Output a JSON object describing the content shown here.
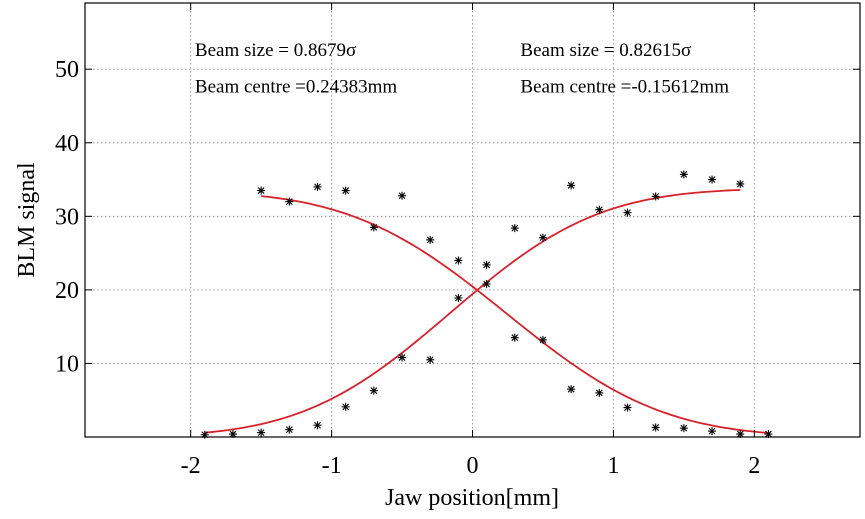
{
  "chart_data": {
    "type": "scatter",
    "xlabel": "Jaw position[mm]",
    "ylabel": "BLM signal",
    "xlim": [
      -2.75,
      2.75
    ],
    "ylim": [
      0,
      59
    ],
    "xticks": [
      -2,
      -1,
      0,
      1,
      2
    ],
    "yticks": [
      10,
      20,
      30,
      40,
      50
    ],
    "grid": true,
    "colors": {
      "fit": "#d8222a",
      "marker": "#000000",
      "grid": "#9a9a9a",
      "axes": "#000000"
    },
    "annotations": [
      {
        "id": "left-size",
        "text": "Beam size = 0.8679σ",
        "x": -1.97,
        "y": 51.8
      },
      {
        "id": "left-centre",
        "text": "Beam centre =0.24383mm",
        "x": -1.97,
        "y": 46.8
      },
      {
        "id": "right-size",
        "text": "Beam size = 0.82615σ",
        "x": 0.34,
        "y": 51.8
      },
      {
        "id": "right-centre",
        "text": "Beam centre =-0.15612mm",
        "x": 0.34,
        "y": 46.8
      }
    ],
    "series": [
      {
        "marker": "*",
        "x": [
          -1.5,
          -1.3,
          -1.1,
          -0.9,
          -0.7,
          -0.5,
          -0.3,
          -0.1,
          0.1,
          0.3,
          0.5,
          0.7,
          0.9,
          1.1,
          1.3,
          1.5,
          1.7,
          1.9,
          2.1
        ],
        "y": [
          33.5,
          32.0,
          34.0,
          33.5,
          28.5,
          32.8,
          26.8,
          24.0,
          20.8,
          13.5,
          13.2,
          6.5,
          6.0,
          4.0,
          1.3,
          1.2,
          0.8,
          0.4,
          0.4
        ],
        "fit": {
          "amplitude": 33.5,
          "centre": 0.24383,
          "sigma": 0.8679,
          "direction": "decreasing",
          "x_range": [
            -1.5,
            2.1
          ]
        }
      },
      {
        "marker": "*",
        "x": [
          -1.9,
          -1.7,
          -1.5,
          -1.3,
          -1.1,
          -0.9,
          -0.7,
          -0.5,
          -0.3,
          -0.1,
          0.1,
          0.3,
          0.5,
          0.7,
          0.9,
          1.1,
          1.3,
          1.5,
          1.7,
          1.9
        ],
        "y": [
          0.3,
          0.4,
          0.6,
          1.0,
          1.6,
          4.1,
          6.3,
          10.8,
          10.5,
          18.9,
          23.4,
          28.4,
          27.1,
          34.2,
          30.9,
          30.5,
          32.7,
          35.7,
          35.0,
          34.4
        ],
        "fit": {
          "amplitude": 33.8,
          "centre": -0.15612,
          "sigma": 0.82615,
          "direction": "increasing",
          "x_range": [
            -1.9,
            1.9
          ]
        }
      }
    ]
  }
}
